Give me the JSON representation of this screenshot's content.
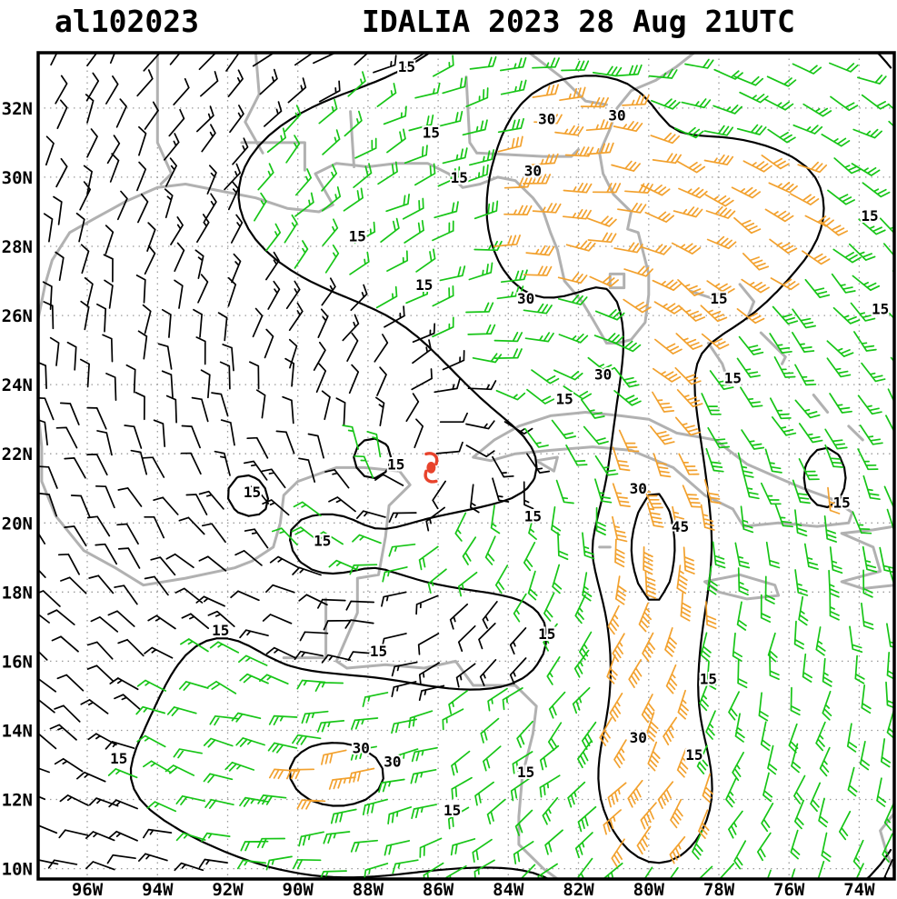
{
  "header": {
    "storm_id": "al102023",
    "title": "IDALIA 2023 28 Aug 21UTC"
  },
  "chart_data": {
    "type": "wind_barb_map",
    "title": "IDALIA 2023 28 Aug 21UTC",
    "atcf_id": "al102023",
    "storm": {
      "name": "IDALIA",
      "center_lon": -86.2,
      "center_lat": 21.6,
      "symbol_color": "#e8432c"
    },
    "domain": {
      "lon_min": -97.4,
      "lon_max": -73.0,
      "lat_min": 9.7,
      "lat_max": 33.6
    },
    "x_ticks": [
      {
        "label": "96W",
        "lon": -96
      },
      {
        "label": "94W",
        "lon": -94
      },
      {
        "label": "92W",
        "lon": -92
      },
      {
        "label": "90W",
        "lon": -90
      },
      {
        "label": "88W",
        "lon": -88
      },
      {
        "label": "86W",
        "lon": -86
      },
      {
        "label": "84W",
        "lon": -84
      },
      {
        "label": "82W",
        "lon": -82
      },
      {
        "label": "80W",
        "lon": -80
      },
      {
        "label": "78W",
        "lon": -78
      },
      {
        "label": "76W",
        "lon": -76
      },
      {
        "label": "74W",
        "lon": -74
      }
    ],
    "y_ticks": [
      {
        "label": "10N",
        "lat": 10
      },
      {
        "label": "12N",
        "lat": 12
      },
      {
        "label": "14N",
        "lat": 14
      },
      {
        "label": "16N",
        "lat": 16
      },
      {
        "label": "18N",
        "lat": 18
      },
      {
        "label": "20N",
        "lat": 20
      },
      {
        "label": "22N",
        "lat": 22
      },
      {
        "label": "24N",
        "lat": 24
      },
      {
        "label": "26N",
        "lat": 26
      },
      {
        "label": "28N",
        "lat": 28
      },
      {
        "label": "30N",
        "lat": 30
      },
      {
        "label": "32N",
        "lat": 32
      }
    ],
    "isotach_levels_kt": [
      15,
      30,
      45
    ],
    "barb_palette": {
      "light": "#000000",
      "moderate": "#17c517",
      "strong": "#f2a12e",
      "thresholds_kt": [
        15,
        30
      ]
    },
    "grid_color": "#9b9b9b",
    "coastline_color": "#b1b1b1",
    "contour_color": "#000000",
    "wind_field_model": {
      "background_kt": 8,
      "inflow_deg": 20,
      "grid_step_deg": 0.85,
      "bands": [
        {
          "name": "south-band",
          "lon": -86.0,
          "lat": 12.5,
          "amp": 12,
          "slon": 8.0,
          "slat": 2.2
        },
        {
          "name": "sw-core",
          "lon": -89.0,
          "lat": 12.8,
          "amp": 14,
          "slon": 1.8,
          "slat": 1.5
        },
        {
          "name": "east-jet",
          "lon": -80.0,
          "lat": 18.0,
          "amp": 16,
          "slon": 1.4,
          "slat": 6.5
        },
        {
          "name": "east-jet-core",
          "lon": -79.8,
          "lat": 19.5,
          "amp": 15,
          "slon": 1.0,
          "slat": 3.0
        },
        {
          "name": "ne-band",
          "lon": -83.3,
          "lat": 28.5,
          "amp": 14,
          "slon": 1.6,
          "slat": 3.2
        },
        {
          "name": "north-green",
          "lon": -85.5,
          "lat": 29.5,
          "amp": 11,
          "slon": 6.5,
          "slat": 3.5
        },
        {
          "name": "east-green",
          "lon": -77.0,
          "lat": 22.0,
          "amp": 10,
          "slon": 4.0,
          "slat": 8.0
        },
        {
          "name": "right-edge-band",
          "lon": -74.5,
          "lat": 20.0,
          "amp": 8,
          "slon": 1.5,
          "slat": 8.0
        },
        {
          "name": "ne-orange",
          "lon": -78.0,
          "lat": 28.0,
          "amp": 12,
          "slon": 1.2,
          "slat": 2.0
        },
        {
          "name": "se-core",
          "lon": -79.5,
          "lat": 11.5,
          "amp": 10,
          "slon": 1.2,
          "slat": 1.5
        },
        {
          "name": "right-orange-spot",
          "lon": -75.0,
          "lat": 21.3,
          "amp": 8,
          "slon": 0.8,
          "slat": 1.0
        },
        {
          "name": "topright-green",
          "lon": -76.0,
          "lat": 30.0,
          "amp": 10,
          "slon": 2.5,
          "slat": 2.5
        },
        {
          "name": "central-green-tongue",
          "lon": -85.0,
          "lat": 19.2,
          "amp": 9,
          "slon": 3.5,
          "slat": 1.1
        },
        {
          "name": "top-30-lobe-a",
          "lon": -82.5,
          "lat": 32.5,
          "amp": 6,
          "slon": 1.8,
          "slat": 1.5
        },
        {
          "name": "top-30-lobe-b",
          "lon": -80.7,
          "lat": 32.3,
          "amp": 7,
          "slon": 1.4,
          "slat": 1.5
        },
        {
          "name": "west-spot-a",
          "lon": -91.5,
          "lat": 20.9,
          "amp": 7.2,
          "slon": 0.9,
          "slat": 0.9
        },
        {
          "name": "west-spot-b",
          "lon": -87.9,
          "lat": 21.9,
          "amp": 7.2,
          "slon": 0.7,
          "slat": 0.7
        },
        {
          "name": "west-spot-c",
          "lon": -89.3,
          "lat": 19.5,
          "amp": 5.5,
          "slon": 0.8,
          "slat": 0.8
        },
        {
          "name": "campeche-tongue",
          "lon": -92.3,
          "lat": 15.8,
          "amp": 6,
          "slon": 1.5,
          "slat": 1.8
        }
      ]
    },
    "contour_labels": [
      {
        "text": "15",
        "lon": -86.9,
        "lat": 33.2
      },
      {
        "text": "15",
        "lon": -86.2,
        "lat": 31.3
      },
      {
        "text": "15",
        "lon": -85.4,
        "lat": 30.0
      },
      {
        "text": "15",
        "lon": -88.3,
        "lat": 28.3
      },
      {
        "text": "15",
        "lon": -86.4,
        "lat": 26.9
      },
      {
        "text": "15",
        "lon": -73.7,
        "lat": 28.9
      },
      {
        "text": "15",
        "lon": -78.0,
        "lat": 26.5
      },
      {
        "text": "15",
        "lon": -77.6,
        "lat": 24.2
      },
      {
        "text": "15",
        "lon": -82.4,
        "lat": 23.6
      },
      {
        "text": "15",
        "lon": -74.5,
        "lat": 20.6
      },
      {
        "text": "15",
        "lon": -87.2,
        "lat": 21.7
      },
      {
        "text": "15",
        "lon": -91.3,
        "lat": 20.9
      },
      {
        "text": "15",
        "lon": -83.3,
        "lat": 20.2
      },
      {
        "text": "15",
        "lon": -89.3,
        "lat": 19.5
      },
      {
        "text": "15",
        "lon": -92.2,
        "lat": 16.9
      },
      {
        "text": "15",
        "lon": -87.7,
        "lat": 16.3
      },
      {
        "text": "15",
        "lon": -82.9,
        "lat": 16.8
      },
      {
        "text": "15",
        "lon": -78.3,
        "lat": 15.5
      },
      {
        "text": "15",
        "lon": -95.1,
        "lat": 13.2
      },
      {
        "text": "15",
        "lon": -83.5,
        "lat": 12.8
      },
      {
        "text": "15",
        "lon": -78.7,
        "lat": 13.3
      },
      {
        "text": "15",
        "lon": -85.6,
        "lat": 11.7
      },
      {
        "text": "15",
        "lon": -73.4,
        "lat": 26.2
      },
      {
        "text": "30",
        "lon": -82.9,
        "lat": 31.7
      },
      {
        "text": "30",
        "lon": -80.9,
        "lat": 31.8
      },
      {
        "text": "30",
        "lon": -83.3,
        "lat": 30.2
      },
      {
        "text": "30",
        "lon": -83.5,
        "lat": 26.5
      },
      {
        "text": "30",
        "lon": -81.3,
        "lat": 24.3
      },
      {
        "text": "30",
        "lon": -80.3,
        "lat": 21.0
      },
      {
        "text": "30",
        "lon": -88.2,
        "lat": 13.5
      },
      {
        "text": "30",
        "lon": -87.3,
        "lat": 13.1
      },
      {
        "text": "30",
        "lon": -80.3,
        "lat": 13.8
      },
      {
        "text": "45",
        "lon": -79.1,
        "lat": 19.9
      }
    ],
    "coastlines": [
      [
        [
          -97.4,
          25.9
        ],
        [
          -97.2,
          26.9
        ],
        [
          -97.0,
          27.6
        ],
        [
          -96.5,
          28.4
        ],
        [
          -95.8,
          28.8
        ],
        [
          -94.9,
          29.3
        ],
        [
          -94.0,
          29.7
        ],
        [
          -93.2,
          29.8
        ],
        [
          -92.2,
          29.6
        ],
        [
          -91.2,
          29.4
        ],
        [
          -90.3,
          29.1
        ],
        [
          -89.4,
          29.0
        ],
        [
          -89.0,
          29.2
        ],
        [
          -89.5,
          30.1
        ],
        [
          -88.9,
          30.4
        ],
        [
          -88.0,
          30.3
        ],
        [
          -87.2,
          30.4
        ],
        [
          -86.3,
          30.4
        ],
        [
          -85.7,
          30.1
        ],
        [
          -85.3,
          29.7
        ],
        [
          -84.8,
          29.8
        ],
        [
          -84.3,
          30.0
        ],
        [
          -83.8,
          29.9
        ],
        [
          -83.3,
          29.4
        ],
        [
          -83.0,
          29.0
        ],
        [
          -82.8,
          28.4
        ],
        [
          -82.6,
          27.9
        ],
        [
          -82.4,
          27.0
        ],
        [
          -81.9,
          26.4
        ],
        [
          -81.6,
          25.9
        ],
        [
          -81.2,
          25.2
        ],
        [
          -80.9,
          25.2
        ],
        [
          -80.5,
          25.3
        ],
        [
          -80.1,
          25.8
        ],
        [
          -80.0,
          26.6
        ],
        [
          -80.0,
          27.2
        ],
        [
          -80.3,
          28.4
        ],
        [
          -80.6,
          28.5
        ],
        [
          -80.5,
          29.0
        ],
        [
          -81.0,
          29.5
        ],
        [
          -81.3,
          30.1
        ],
        [
          -81.4,
          30.7
        ],
        [
          -81.1,
          31.4
        ],
        [
          -80.9,
          32.0
        ],
        [
          -80.5,
          32.5
        ],
        [
          -79.8,
          32.8
        ],
        [
          -79.2,
          33.2
        ],
        [
          -78.7,
          33.6
        ]
      ],
      [
        [
          -97.4,
          23.2
        ],
        [
          -97.3,
          22.2
        ],
        [
          -97.3,
          21.2
        ],
        [
          -96.9,
          20.2
        ],
        [
          -96.1,
          19.2
        ],
        [
          -95.2,
          18.7
        ],
        [
          -94.4,
          18.2
        ],
        [
          -93.2,
          18.4
        ],
        [
          -91.8,
          18.7
        ],
        [
          -91.3,
          18.9
        ],
        [
          -90.7,
          19.3
        ],
        [
          -90.5,
          20.0
        ],
        [
          -90.4,
          20.8
        ],
        [
          -90.0,
          21.2
        ],
        [
          -88.9,
          21.6
        ],
        [
          -88.1,
          21.6
        ],
        [
          -87.1,
          21.5
        ],
        [
          -86.8,
          21.1
        ],
        [
          -87.4,
          20.5
        ],
        [
          -87.5,
          19.6
        ],
        [
          -87.7,
          18.5
        ],
        [
          -88.3,
          18.4
        ],
        [
          -88.3,
          17.4
        ],
        [
          -88.9,
          16.0
        ],
        [
          -88.6,
          15.8
        ],
        [
          -87.5,
          15.9
        ],
        [
          -86.4,
          15.8
        ],
        [
          -85.5,
          16.0
        ],
        [
          -85.0,
          15.3
        ],
        [
          -83.8,
          15.3
        ],
        [
          -83.2,
          14.7
        ],
        [
          -83.3,
          13.9
        ],
        [
          -83.6,
          12.7
        ],
        [
          -83.7,
          11.5
        ],
        [
          -83.7,
          10.7
        ],
        [
          -83.0,
          10.0
        ],
        [
          -82.6,
          9.7
        ]
      ],
      [
        [
          -85.0,
          21.9
        ],
        [
          -84.4,
          22.4
        ],
        [
          -83.7,
          22.8
        ],
        [
          -82.8,
          23.1
        ],
        [
          -81.8,
          23.2
        ],
        [
          -80.8,
          23.1
        ],
        [
          -80.0,
          23.0
        ],
        [
          -79.2,
          22.6
        ],
        [
          -78.1,
          22.4
        ],
        [
          -77.2,
          21.7
        ],
        [
          -76.3,
          21.3
        ],
        [
          -75.6,
          21.0
        ],
        [
          -74.8,
          20.7
        ],
        [
          -74.2,
          20.3
        ],
        [
          -74.3,
          20.0
        ],
        [
          -75.2,
          19.9
        ],
        [
          -76.3,
          20.0
        ],
        [
          -77.3,
          19.9
        ],
        [
          -77.6,
          20.4
        ],
        [
          -78.4,
          20.8
        ],
        [
          -79.3,
          21.6
        ],
        [
          -80.5,
          22.1
        ],
        [
          -81.6,
          22.2
        ],
        [
          -82.8,
          22.1
        ],
        [
          -83.8,
          22.0
        ],
        [
          -84.5,
          21.8
        ],
        [
          -85.0,
          21.9
        ]
      ],
      [
        [
          -83.2,
          21.8
        ],
        [
          -82.7,
          21.5
        ],
        [
          -82.6,
          21.9
        ],
        [
          -83.2,
          21.8
        ]
      ],
      [
        [
          -78.4,
          18.3
        ],
        [
          -77.4,
          18.5
        ],
        [
          -76.4,
          18.2
        ],
        [
          -76.3,
          17.9
        ],
        [
          -77.2,
          17.8
        ],
        [
          -78.0,
          18.0
        ],
        [
          -78.4,
          18.3
        ]
      ],
      [
        [
          -73.0,
          19.9
        ],
        [
          -73.6,
          19.8
        ],
        [
          -74.5,
          19.7
        ],
        [
          -73.6,
          19.3
        ],
        [
          -73.4,
          18.6
        ],
        [
          -74.5,
          18.3
        ],
        [
          -73.9,
          18.1
        ],
        [
          -73.0,
          18.2
        ]
      ],
      [
        [
          -78.8,
          26.7
        ],
        [
          -78.2,
          26.5
        ],
        [
          -77.9,
          26.7
        ]
      ],
      [
        [
          -77.4,
          26.9
        ],
        [
          -77.0,
          26.4
        ],
        [
          -77.2,
          25.9
        ]
      ],
      [
        [
          -78.3,
          25.2
        ],
        [
          -77.9,
          24.6
        ],
        [
          -77.7,
          24.0
        ]
      ],
      [
        [
          -76.8,
          25.5
        ],
        [
          -76.1,
          24.8
        ],
        [
          -76.2,
          24.6
        ]
      ],
      [
        [
          -75.3,
          23.7
        ],
        [
          -74.9,
          23.2
        ]
      ],
      [
        [
          -74.3,
          22.8
        ],
        [
          -73.9,
          22.4
        ]
      ],
      [
        [
          -73.0,
          11.6
        ],
        [
          -73.4,
          11.1
        ],
        [
          -73.2,
          10.4
        ],
        [
          -73.0,
          10.0
        ]
      ],
      [
        [
          -94.0,
          33.6
        ],
        [
          -94.0,
          31.0
        ],
        [
          -93.6,
          30.1
        ],
        [
          -93.9,
          29.8
        ]
      ],
      [
        [
          -91.6,
          31.0
        ],
        [
          -89.8,
          31.0
        ],
        [
          -89.8,
          30.2
        ]
      ],
      [
        [
          -88.5,
          31.9
        ],
        [
          -88.4,
          30.3
        ]
      ],
      [
        [
          -85.2,
          32.9
        ],
        [
          -85.1,
          31.0
        ],
        [
          -84.9,
          30.7
        ]
      ],
      [
        [
          -84.9,
          30.7
        ],
        [
          -83.0,
          30.6
        ],
        [
          -82.2,
          30.6
        ],
        [
          -82.0,
          30.8
        ]
      ],
      [
        [
          -91.2,
          33.6
        ],
        [
          -91.1,
          32.4
        ],
        [
          -91.5,
          31.6
        ],
        [
          -91.0,
          30.7
        ]
      ],
      [
        [
          -83.4,
          33.6
        ],
        [
          -82.5,
          32.9
        ],
        [
          -81.8,
          32.2
        ],
        [
          -81.2,
          32.1
        ]
      ],
      [
        [
          -89.2,
          17.8
        ],
        [
          -89.2,
          16.1
        ],
        [
          -90.4,
          16.1
        ]
      ],
      [
        [
          -81.1,
          27.2
        ],
        [
          -80.7,
          27.2
        ],
        [
          -80.7,
          26.8
        ],
        [
          -81.1,
          26.8
        ],
        [
          -81.1,
          27.2
        ]
      ],
      [
        [
          -81.4,
          19.3
        ],
        [
          -81.1,
          19.3
        ]
      ]
    ]
  }
}
